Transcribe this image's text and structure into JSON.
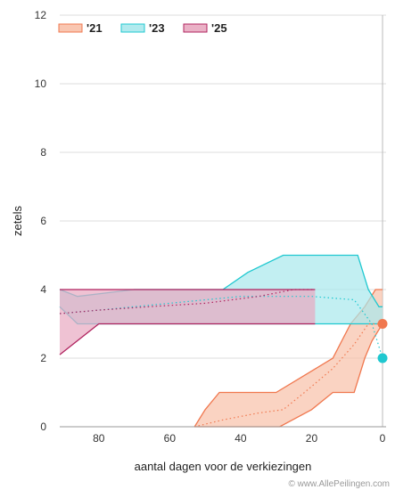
{
  "chart_data": {
    "type": "area",
    "xlabel": "aantal dagen voor de verkiezingen",
    "ylabel": "zetels",
    "xlim": [
      91,
      -1
    ],
    "ylim": [
      0,
      12
    ],
    "x_ticks": [
      80,
      60,
      40,
      20,
      0
    ],
    "y_ticks": [
      0,
      2,
      4,
      6,
      8,
      10,
      12
    ],
    "grid": true,
    "legend_position": "top-left",
    "watermark": "© www.AllePeilingen.com",
    "series": [
      {
        "name": "'21",
        "color": "#f0784f",
        "fill": "#f8c0a8",
        "upper": [
          [
            53,
            0
          ],
          [
            50,
            0.5
          ],
          [
            46,
            1
          ],
          [
            43,
            1
          ],
          [
            35,
            1
          ],
          [
            30,
            1
          ],
          [
            22,
            1.5
          ],
          [
            14,
            2
          ],
          [
            9,
            3
          ],
          [
            5,
            3.5
          ],
          [
            2,
            4
          ],
          [
            0,
            4
          ]
        ],
        "lower": [
          [
            53,
            0
          ],
          [
            46,
            0
          ],
          [
            40,
            0
          ],
          [
            32,
            0
          ],
          [
            29,
            0
          ],
          [
            20,
            0.5
          ],
          [
            14,
            1
          ],
          [
            8,
            1
          ],
          [
            5,
            2
          ],
          [
            3,
            2.5
          ],
          [
            0,
            3
          ]
        ],
        "trend": [
          [
            53,
            0
          ],
          [
            45,
            0.2
          ],
          [
            35,
            0.4
          ],
          [
            28,
            0.5
          ],
          [
            22,
            1
          ],
          [
            14,
            1.7
          ],
          [
            8,
            2.4
          ],
          [
            4,
            3
          ],
          [
            1,
            3
          ]
        ],
        "end_value": 3
      },
      {
        "name": "'23",
        "color": "#1fc8d0",
        "fill": "#a8e8ec",
        "upper": [
          [
            91,
            4
          ],
          [
            86,
            3.8
          ],
          [
            70,
            4
          ],
          [
            65,
            4
          ],
          [
            45,
            4
          ],
          [
            38,
            4.5
          ],
          [
            28,
            5
          ],
          [
            21,
            5
          ],
          [
            13,
            5
          ],
          [
            7,
            5
          ],
          [
            4,
            4
          ],
          [
            1,
            3.5
          ],
          [
            0,
            3.5
          ]
        ],
        "lower": [
          [
            91,
            3.5
          ],
          [
            86,
            3
          ],
          [
            78,
            3
          ],
          [
            70,
            3
          ],
          [
            55,
            3
          ],
          [
            45,
            3
          ],
          [
            30,
            3
          ],
          [
            20,
            3
          ],
          [
            12,
            3
          ],
          [
            5,
            3
          ],
          [
            1,
            3
          ],
          [
            0,
            3
          ]
        ],
        "trend": [
          [
            91,
            3.3
          ],
          [
            80,
            3.4
          ],
          [
            60,
            3.6
          ],
          [
            40,
            3.8
          ],
          [
            20,
            3.8
          ],
          [
            8,
            3.7
          ],
          [
            3,
            3
          ],
          [
            0,
            2
          ]
        ],
        "end_value": 2
      },
      {
        "name": "'25",
        "color": "#b0235f",
        "fill": "#e8a8c0",
        "upper": [
          [
            91,
            4
          ],
          [
            80,
            4
          ],
          [
            60,
            4
          ],
          [
            40,
            4
          ],
          [
            25,
            4
          ],
          [
            19,
            4
          ]
        ],
        "lower": [
          [
            91,
            2.1
          ],
          [
            80,
            3
          ],
          [
            70,
            3
          ],
          [
            55,
            3
          ],
          [
            40,
            3
          ],
          [
            25,
            3
          ],
          [
            19,
            3
          ]
        ],
        "trend": [
          [
            91,
            3.3
          ],
          [
            80,
            3.4
          ],
          [
            66,
            3.5
          ],
          [
            50,
            3.6
          ],
          [
            35,
            3.8
          ],
          [
            25,
            4
          ],
          [
            19,
            4
          ]
        ],
        "end_value": null
      }
    ]
  }
}
